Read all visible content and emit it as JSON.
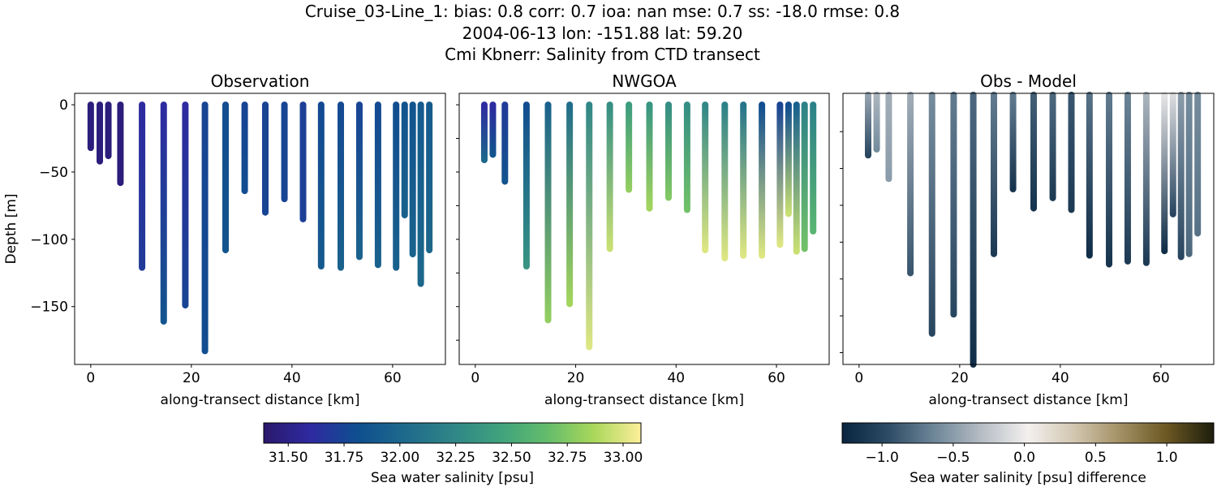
{
  "suptitle": {
    "line1": "Cruise_03-Line_1: bias: 0.8  corr: 0.7  ioa: nan  mse: 0.7  ss: -18.0  rmse: 0.8",
    "line2": "2004-06-13 lon: -151.88 lat: 59.20",
    "line3": "Cmi Kbnerr: Salinity from CTD transect"
  },
  "chart_data": [
    {
      "type": "scatter",
      "title": "Observation",
      "xlabel": "along-transect distance [km]",
      "ylabel": "Depth [m]",
      "xlim": [
        -3.2,
        70.5
      ],
      "ylim": [
        -193,
        8.5
      ],
      "xticks": [
        0,
        20,
        40,
        60
      ],
      "yticks": [
        0,
        -50,
        -100,
        -150
      ],
      "ytick_labels_shown": true,
      "colormap": "haline",
      "clim": [
        31.39,
        33.08
      ],
      "casts": [
        {
          "km": 0.0,
          "bottom": -32,
          "values": [
            31.45,
            31.45
          ]
        },
        {
          "km": 1.8,
          "bottom": -42,
          "values": [
            31.45,
            31.45
          ]
        },
        {
          "km": 3.5,
          "bottom": -38,
          "values": [
            31.45,
            31.45
          ]
        },
        {
          "km": 5.9,
          "bottom": -58,
          "values": [
            31.45,
            31.45
          ]
        },
        {
          "km": 10.2,
          "bottom": -121,
          "values": [
            31.6,
            31.7
          ]
        },
        {
          "km": 14.5,
          "bottom": -161,
          "values": [
            31.6,
            31.85
          ]
        },
        {
          "km": 18.8,
          "bottom": -149,
          "values": [
            31.6,
            31.75
          ]
        },
        {
          "km": 22.7,
          "bottom": -183,
          "values": [
            31.75,
            31.8
          ]
        },
        {
          "km": 26.8,
          "bottom": -108,
          "values": [
            31.8,
            31.85
          ]
        },
        {
          "km": 30.6,
          "bottom": -64,
          "values": [
            31.75,
            31.8
          ]
        },
        {
          "km": 34.7,
          "bottom": -80,
          "values": [
            31.75,
            31.75
          ]
        },
        {
          "km": 38.5,
          "bottom": -70,
          "values": [
            31.75,
            31.75
          ]
        },
        {
          "km": 42.2,
          "bottom": -85,
          "values": [
            31.72,
            31.72
          ]
        },
        {
          "km": 45.8,
          "bottom": -120,
          "values": [
            31.78,
            31.9
          ]
        },
        {
          "km": 49.7,
          "bottom": -121,
          "values": [
            31.78,
            31.95
          ]
        },
        {
          "km": 53.4,
          "bottom": -113,
          "values": [
            31.75,
            31.97
          ]
        },
        {
          "km": 57.1,
          "bottom": -119,
          "values": [
            31.78,
            31.95
          ]
        },
        {
          "km": 60.7,
          "bottom": -121,
          "values": [
            31.8,
            31.95
          ]
        },
        {
          "km": 62.4,
          "bottom": -82,
          "values": [
            31.85,
            31.95
          ]
        },
        {
          "km": 64.0,
          "bottom": -111,
          "values": [
            31.85,
            31.97
          ]
        },
        {
          "km": 65.6,
          "bottom": -133,
          "values": [
            31.9,
            32.0
          ]
        },
        {
          "km": 67.3,
          "bottom": -108,
          "values": [
            31.9,
            32.0
          ]
        }
      ]
    },
    {
      "type": "scatter",
      "title": "NWGOA",
      "xlabel": "along-transect distance [km]",
      "xlim": [
        -3.2,
        70.5
      ],
      "ylim": [
        -193,
        8.5
      ],
      "xticks": [
        0,
        20,
        40,
        60
      ],
      "yticks": [
        0,
        -25,
        -50,
        -75,
        -100,
        -125,
        -150,
        -175
      ],
      "ytick_labels_shown": false,
      "colormap": "haline",
      "clim": [
        31.39,
        33.08
      ],
      "casts": [
        {
          "km": 1.8,
          "bottom": -41,
          "values": [
            31.6,
            32.0
          ]
        },
        {
          "km": 3.5,
          "bottom": -37,
          "values": [
            31.6,
            31.85
          ]
        },
        {
          "km": 5.9,
          "bottom": -57,
          "values": [
            31.7,
            31.85
          ]
        },
        {
          "km": 10.2,
          "bottom": -120,
          "values": [
            31.8,
            32.35
          ]
        },
        {
          "km": 14.5,
          "bottom": -160,
          "values": [
            31.95,
            32.8
          ]
        },
        {
          "km": 18.8,
          "bottom": -148,
          "values": [
            32.05,
            32.85
          ]
        },
        {
          "km": 22.7,
          "bottom": -180,
          "values": [
            32.25,
            33.0
          ]
        },
        {
          "km": 26.8,
          "bottom": -107,
          "values": [
            32.3,
            32.95
          ]
        },
        {
          "km": 30.6,
          "bottom": -63,
          "values": [
            32.4,
            32.8
          ]
        },
        {
          "km": 34.7,
          "bottom": -77,
          "values": [
            32.35,
            32.85
          ]
        },
        {
          "km": 38.5,
          "bottom": -69,
          "values": [
            32.3,
            32.75
          ]
        },
        {
          "km": 42.2,
          "bottom": -78,
          "values": [
            32.3,
            32.7
          ]
        },
        {
          "km": 45.8,
          "bottom": -108,
          "values": [
            32.25,
            33.0
          ]
        },
        {
          "km": 49.7,
          "bottom": -114,
          "values": [
            32.2,
            33.0
          ]
        },
        {
          "km": 53.4,
          "bottom": -112,
          "values": [
            32.1,
            33.0
          ]
        },
        {
          "km": 57.1,
          "bottom": -112,
          "values": [
            31.8,
            33.0
          ]
        },
        {
          "km": 60.7,
          "bottom": -104,
          "values": [
            31.75,
            33.0
          ]
        },
        {
          "km": 62.4,
          "bottom": -81,
          "values": [
            31.8,
            32.95
          ]
        },
        {
          "km": 64.0,
          "bottom": -109,
          "values": [
            31.95,
            32.95
          ]
        },
        {
          "km": 65.6,
          "bottom": -107,
          "values": [
            32.2,
            32.7
          ]
        },
        {
          "km": 67.3,
          "bottom": -94,
          "values": [
            32.2,
            32.6
          ]
        }
      ]
    },
    {
      "type": "scatter",
      "title": "Obs - Model",
      "xlabel": "along-transect distance [km]",
      "xlim": [
        -3.2,
        70.5
      ],
      "ylim": [
        -183,
        1
      ],
      "xticks": [
        0,
        20,
        40,
        60
      ],
      "yticks": [
        -25,
        -50,
        -75,
        -100,
        -125,
        -150,
        -175
      ],
      "ytick_labels_shown": false,
      "colormap": "diff",
      "clim": [
        -1.28,
        1.33
      ],
      "casts": [
        {
          "km": 1.8,
          "bottom": -41,
          "values": [
            -0.45,
            -1.0
          ]
        },
        {
          "km": 3.5,
          "bottom": -37,
          "values": [
            -0.35,
            -0.6
          ]
        },
        {
          "km": 5.9,
          "bottom": -57,
          "values": [
            -0.4,
            -0.5
          ]
        },
        {
          "km": 10.2,
          "bottom": -121,
          "values": [
            -0.4,
            -0.9
          ]
        },
        {
          "km": 14.5,
          "bottom": -162,
          "values": [
            -0.6,
            -1.0
          ]
        },
        {
          "km": 18.8,
          "bottom": -149,
          "values": [
            -0.7,
            -1.0
          ]
        },
        {
          "km": 22.7,
          "bottom": -183,
          "values": [
            -0.8,
            -1.2
          ]
        },
        {
          "km": 26.8,
          "bottom": -108,
          "values": [
            -0.7,
            -1.1
          ]
        },
        {
          "km": 30.6,
          "bottom": -64,
          "values": [
            -0.7,
            -1.15
          ]
        },
        {
          "km": 34.7,
          "bottom": -77,
          "values": [
            -0.85,
            -1.15
          ]
        },
        {
          "km": 38.5,
          "bottom": -70,
          "values": [
            -0.8,
            -1.1
          ]
        },
        {
          "km": 42.2,
          "bottom": -78,
          "values": [
            -0.9,
            -1.1
          ]
        },
        {
          "km": 45.8,
          "bottom": -109,
          "values": [
            -0.75,
            -1.2
          ]
        },
        {
          "km": 49.7,
          "bottom": -115,
          "values": [
            -0.7,
            -1.15
          ]
        },
        {
          "km": 53.4,
          "bottom": -113,
          "values": [
            -0.65,
            -1.1
          ]
        },
        {
          "km": 57.1,
          "bottom": -114,
          "values": [
            -0.35,
            -1.1
          ]
        },
        {
          "km": 60.7,
          "bottom": -106,
          "values": [
            -0.05,
            -1.2
          ]
        },
        {
          "km": 62.4,
          "bottom": -81,
          "values": [
            -0.1,
            -1.0
          ]
        },
        {
          "km": 64.0,
          "bottom": -110,
          "values": [
            -0.5,
            -1.0
          ]
        },
        {
          "km": 65.6,
          "bottom": -108,
          "values": [
            -0.6,
            -0.8
          ]
        },
        {
          "km": 67.3,
          "bottom": -94,
          "values": [
            -0.6,
            -0.75
          ]
        }
      ]
    }
  ],
  "colorbars": [
    {
      "label": "Sea water salinity [psu]",
      "colormap": "haline",
      "clim": [
        31.39,
        33.08
      ],
      "ticks": [
        31.5,
        31.75,
        32.0,
        32.25,
        32.5,
        32.75,
        33.0
      ],
      "tick_labels": [
        "31.50",
        "31.75",
        "32.00",
        "32.25",
        "32.50",
        "32.75",
        "33.00"
      ]
    },
    {
      "label": "Sea water salinity [psu] difference",
      "colormap": "diff",
      "clim": [
        -1.28,
        1.33
      ],
      "ticks": [
        -1.0,
        -0.5,
        0.0,
        0.5,
        1.0
      ],
      "tick_labels": [
        "−1.0",
        "−0.5",
        "0.0",
        "0.5",
        "1.0"
      ]
    }
  ],
  "colormaps": {
    "haline": [
      "#2a186c",
      "#2e2aa0",
      "#0f4f8f",
      "#1e6a8c",
      "#2f8587",
      "#3ea27d",
      "#63bc6c",
      "#a9d75a",
      "#fdef9a"
    ],
    "diff": [
      "#08243e",
      "#2e4c66",
      "#6f8799",
      "#b6bdc5",
      "#f3f0ee",
      "#d2c6b0",
      "#a28f63",
      "#6a5722",
      "#1d1d0d"
    ]
  }
}
